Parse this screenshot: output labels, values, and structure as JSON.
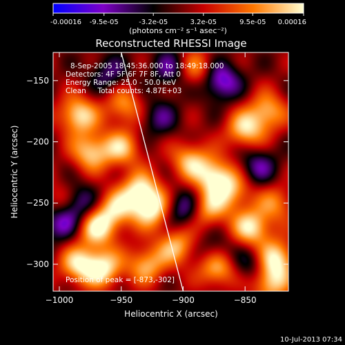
{
  "chart_data": {
    "type": "heatmap",
    "title": "Reconstructed RHESSI Image",
    "xlabel": "Heliocentric X (arcsec)",
    "ylabel": "Heliocentric Y (arcsec)",
    "xlim": [
      -1005,
      -815
    ],
    "ylim": [
      -322,
      -127
    ],
    "x_ticks": [
      -1000,
      -950,
      -900,
      -850
    ],
    "y_ticks": [
      -150,
      -200,
      -250,
      -300
    ],
    "colorbar": {
      "min": -0.00016,
      "max": 0.00016,
      "ticks": [
        "-0.00016",
        "-9.5e-05",
        "-3.2e-05",
        "3.2e-05",
        "9.5e-05",
        "0.00016"
      ],
      "unit_label": "(photons cm⁻² s⁻¹ asec⁻²)",
      "colors": [
        "#0000ff",
        "#7e00c8",
        "#000000",
        "#c80000",
        "#ff7800",
        "#ffffd2"
      ]
    },
    "info_lines": [
      "8-Sep-2005 18:45:36.000 to 18:49:18.000",
      "Detectors: 4F 5F 6F 7F 8F, Att 0",
      "Energy Range: 25.0 - 50.0 keV",
      "Clean     Total counts: 4.87E+03"
    ],
    "peak_label": "Position of peak = [-873,-302]",
    "limb": [
      [
        -950,
        -127
      ],
      [
        -900,
        -322
      ]
    ],
    "sources": [
      {
        "x": -985,
        "y": -178,
        "v": 1.0
      },
      {
        "x": -975,
        "y": -208,
        "v": 0.9
      },
      {
        "x": -970,
        "y": -270,
        "v": 1.0
      },
      {
        "x": -965,
        "y": -303,
        "v": 1.0
      },
      {
        "x": -985,
        "y": -300,
        "v": 0.9
      },
      {
        "x": -955,
        "y": -255,
        "v": 0.8
      },
      {
        "x": -950,
        "y": -205,
        "v": 0.8
      },
      {
        "x": -948,
        "y": -170,
        "v": 0.7
      },
      {
        "x": -935,
        "y": -240,
        "v": 1.0
      },
      {
        "x": -925,
        "y": -255,
        "v": 1.0
      },
      {
        "x": -930,
        "y": -300,
        "v": 0.8
      },
      {
        "x": -905,
        "y": -285,
        "v": 0.8
      },
      {
        "x": -895,
        "y": -215,
        "v": 0.8
      },
      {
        "x": -890,
        "y": -140,
        "v": 0.7
      },
      {
        "x": -880,
        "y": -255,
        "v": 0.8
      },
      {
        "x": -875,
        "y": -228,
        "v": 1.0
      },
      {
        "x": -873,
        "y": -302,
        "v": 1.0
      },
      {
        "x": -860,
        "y": -240,
        "v": 0.7
      },
      {
        "x": -850,
        "y": -190,
        "v": 0.9
      },
      {
        "x": -845,
        "y": -270,
        "v": 1.0
      },
      {
        "x": -832,
        "y": -175,
        "v": 0.8
      },
      {
        "x": -825,
        "y": -250,
        "v": 0.6
      },
      {
        "x": -825,
        "y": -295,
        "v": 1.0
      },
      {
        "x": -830,
        "y": -315,
        "v": 0.9
      },
      {
        "x": -1000,
        "y": -250,
        "v": 0.6
      },
      {
        "x": -870,
        "y": -150,
        "v": -0.9
      },
      {
        "x": -1000,
        "y": -265,
        "v": -0.8
      },
      {
        "x": -985,
        "y": -250,
        "v": -0.7
      },
      {
        "x": -910,
        "y": -140,
        "v": -0.6
      },
      {
        "x": -900,
        "y": -255,
        "v": -0.7
      },
      {
        "x": -840,
        "y": -220,
        "v": -0.6
      },
      {
        "x": -960,
        "y": -145,
        "v": -0.5
      },
      {
        "x": -875,
        "y": -290,
        "v": -0.5
      },
      {
        "x": -845,
        "y": -300,
        "v": -0.5
      },
      {
        "x": -920,
        "y": -180,
        "v": -0.5
      }
    ]
  },
  "footer": {
    "timestamp": "10-Jul-2013 07:34"
  }
}
